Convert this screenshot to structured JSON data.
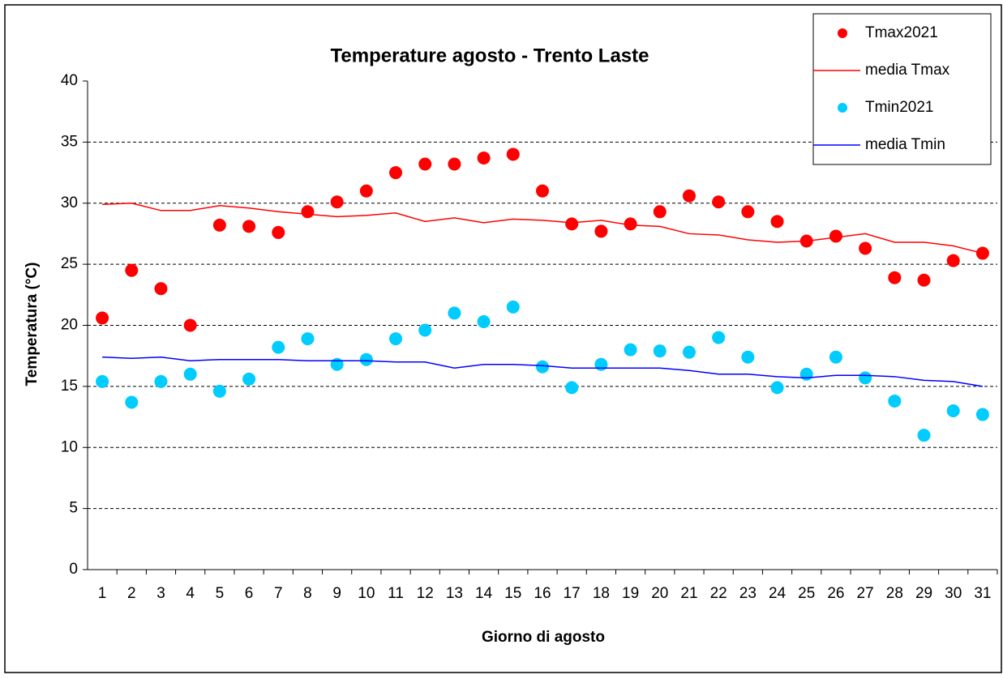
{
  "chart_data": {
    "type": "line",
    "title": "Temperature agosto - Trento Laste",
    "x_label": "Giorno di agosto",
    "y_label": "Temperatura (°C)",
    "categories": [
      "1",
      "2",
      "3",
      "4",
      "5",
      "6",
      "7",
      "8",
      "9",
      "10",
      "11",
      "12",
      "13",
      "14",
      "15",
      "16",
      "17",
      "18",
      "19",
      "20",
      "21",
      "22",
      "23",
      "24",
      "25",
      "26",
      "27",
      "28",
      "29",
      "30",
      "31"
    ],
    "ylim": [
      0,
      40
    ],
    "yticks": [
      0,
      5,
      10,
      15,
      20,
      25,
      30,
      35,
      40
    ],
    "grid": true,
    "legend": "top-right",
    "series": [
      {
        "name": "Tmax2021",
        "color": "#ff0000",
        "mark": "dot",
        "values": [
          20.6,
          24.5,
          23.0,
          20.0,
          28.2,
          28.1,
          27.6,
          29.3,
          30.1,
          31.0,
          32.5,
          33.2,
          33.2,
          33.7,
          34.0,
          31.0,
          28.3,
          27.7,
          28.3,
          29.3,
          30.6,
          30.1,
          29.3,
          28.5,
          26.9,
          27.3,
          26.3,
          23.9,
          23.7,
          25.3,
          25.9
        ]
      },
      {
        "name": "media Tmax",
        "color": "#ff0000",
        "mark": "line",
        "values": [
          29.9,
          30.0,
          29.4,
          29.4,
          29.8,
          29.6,
          29.3,
          29.1,
          28.9,
          29.0,
          29.2,
          28.5,
          28.8,
          28.4,
          28.7,
          28.6,
          28.4,
          28.6,
          28.2,
          28.1,
          27.5,
          27.4,
          27.0,
          26.8,
          26.9,
          27.2,
          27.5,
          26.8,
          26.8,
          26.5,
          25.9
        ]
      },
      {
        "name": "Tmin2021",
        "color": "#00ccff",
        "mark": "dot",
        "values": [
          15.4,
          13.7,
          15.4,
          16.0,
          14.6,
          15.6,
          18.2,
          18.9,
          16.8,
          17.2,
          18.9,
          19.6,
          21.0,
          20.3,
          21.5,
          16.6,
          14.9,
          16.8,
          18.0,
          17.9,
          17.8,
          19.0,
          17.4,
          14.9,
          16.0,
          17.4,
          15.7,
          13.8,
          11.0,
          13.0,
          12.7
        ]
      },
      {
        "name": "media Tmin",
        "color": "#0000ff",
        "mark": "line",
        "values": [
          17.4,
          17.3,
          17.4,
          17.1,
          17.2,
          17.2,
          17.2,
          17.1,
          17.1,
          17.1,
          17.0,
          17.0,
          16.5,
          16.8,
          16.8,
          16.7,
          16.5,
          16.5,
          16.5,
          16.5,
          16.3,
          16.0,
          16.0,
          15.8,
          15.7,
          15.9,
          15.9,
          15.8,
          15.5,
          15.4,
          15.0
        ]
      }
    ]
  }
}
